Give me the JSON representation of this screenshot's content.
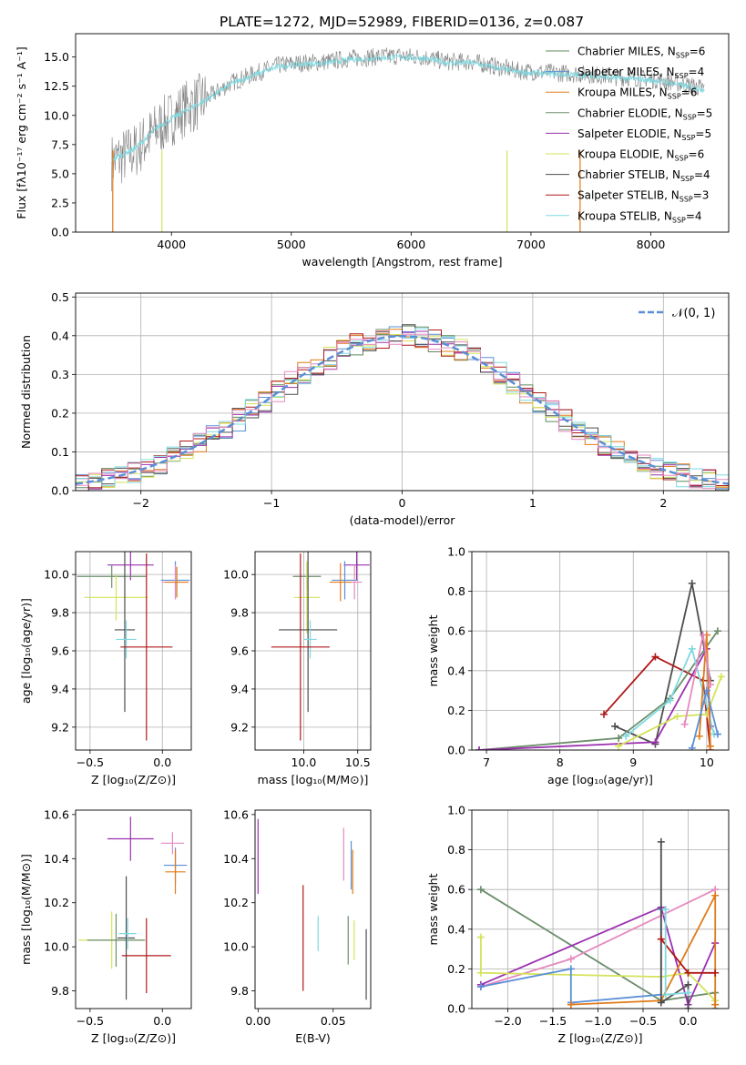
{
  "title": "PLATE=1272, MJD=52989, FIBERID=0136, z=0.087",
  "colors": {
    "chabrier_miles": "#5f8a5f",
    "salpeter_miles": "#1f6fd1",
    "kroupa_miles": "#e07b1a",
    "chabrier_elodie": "#6b8e6b",
    "salpeter_elodie": "#9b30b0",
    "kroupa_elodie": "#d4e35a",
    "chabrier_stelib": "#4d4d4d",
    "salpeter_stelib": "#b01818",
    "kroupa_stelib": "#7fd9e0",
    "pink": "#e58abf",
    "blue2": "#5a8fd6"
  },
  "legend": [
    {
      "label": "Chabrier MILES, N",
      "sub": "SSP",
      "tail": "=6",
      "color": "#5f8a5f"
    },
    {
      "label": "Salpeter MILES, N",
      "sub": "SSP",
      "tail": "=4",
      "color": "#5a8fd6"
    },
    {
      "label": "Kroupa MILES, N",
      "sub": "SSP",
      "tail": "=6",
      "color": "#e07b1a"
    },
    {
      "label": "Chabrier ELODIE, N",
      "sub": "SSP",
      "tail": "=5",
      "color": "#6b8e6b"
    },
    {
      "label": "Salpeter ELODIE, N",
      "sub": "SSP",
      "tail": "=5",
      "color": "#9b30b0"
    },
    {
      "label": "Kroupa ELODIE, N",
      "sub": "SSP",
      "tail": "=6",
      "color": "#d4e35a"
    },
    {
      "label": "Chabrier STELIB, N",
      "sub": "SSP",
      "tail": "=4",
      "color": "#4d4d4d"
    },
    {
      "label": "Salpeter STELIB, N",
      "sub": "SSP",
      "tail": "=3",
      "color": "#b01818"
    },
    {
      "label": "Kroupa STELIB, N",
      "sub": "SSP",
      "tail": "=4",
      "color": "#7fd9e0"
    }
  ],
  "chart_data": [
    {
      "type": "line",
      "panel": "spectrum",
      "xlabel": "wavelength [Angstrom, rest frame]",
      "ylabel": "Flux [fλ10⁻¹⁷ erg cm⁻² s⁻¹ A⁻¹]",
      "xlim": [
        3200,
        8650
      ],
      "ylim": [
        0,
        17
      ],
      "xticks": [
        "4000",
        "5000",
        "6000",
        "7000",
        "8000"
      ],
      "yticks": [
        "0.0",
        "2.5",
        "5.0",
        "7.5",
        "10.0",
        "12.5",
        "15.0"
      ],
      "series": [
        {
          "name": "data",
          "color": "#808080",
          "x": [
            3500,
            3700,
            3900,
            4100,
            4300,
            4500,
            4700,
            4900,
            5100,
            5300,
            5500,
            5700,
            5900,
            6100,
            6300,
            6500,
            6700,
            6900,
            7100,
            7300,
            7500,
            7700,
            7900,
            8100,
            8300,
            8450
          ],
          "y": [
            6,
            7,
            9,
            10.5,
            11.5,
            12.8,
            13.6,
            14.3,
            14.5,
            14.6,
            14.9,
            15.0,
            15.1,
            15.0,
            14.6,
            14.6,
            14.2,
            13.8,
            13.7,
            13.6,
            13.5,
            13.3,
            13.2,
            13.0,
            12.6,
            12.3
          ]
        },
        {
          "name": "model",
          "color": "#7fd9e0",
          "x": [
            3500,
            3700,
            3900,
            4100,
            4300,
            4500,
            4700,
            4900,
            5100,
            5300,
            5500,
            5700,
            5900,
            6100,
            6300,
            6500,
            6700,
            6900,
            7100,
            7300,
            7500,
            7700,
            7900,
            8100,
            8300,
            8450
          ],
          "y": [
            6.2,
            7.2,
            9.1,
            10.3,
            11.4,
            12.7,
            13.5,
            14.2,
            14.4,
            14.5,
            14.8,
            14.9,
            15.0,
            14.9,
            14.5,
            14.5,
            14.1,
            13.7,
            13.6,
            13.5,
            13.4,
            13.2,
            13.1,
            12.9,
            12.5,
            12.2
          ]
        }
      ]
    },
    {
      "type": "line",
      "panel": "residuals",
      "xlabel": "(data-model)/error",
      "ylabel": "Normed distribution",
      "xlim": [
        -2.5,
        2.5
      ],
      "ylim": [
        0,
        0.51
      ],
      "xticks": [
        "−2",
        "−1",
        "0",
        "1",
        "2"
      ],
      "yticks": [
        "0.0",
        "0.1",
        "0.2",
        "0.3",
        "0.4",
        "0.5"
      ],
      "legend_label": "𝒩(0, 1)",
      "gaussian": {
        "mean": 0,
        "sigma": 1
      }
    },
    {
      "type": "scatter",
      "panel": "age_vs_Z",
      "xlabel": "Z [log₁₀(Z/Z⊙)]",
      "ylabel": "age  [log₁₀(age/yr)]",
      "xlim": [
        -0.6,
        0.2
      ],
      "ylim": [
        9.08,
        10.12
      ],
      "xticks": [
        "−0.5",
        "0.0"
      ],
      "yticks": [
        "9.2",
        "9.4",
        "9.6",
        "9.8",
        "10.0"
      ],
      "points": [
        {
          "x": -0.22,
          "y": 10.05,
          "xerr": 0.16,
          "yerr": 0.08,
          "c": "#9b30b0"
        },
        {
          "x": 0.09,
          "y": 9.97,
          "xerr": 0.1,
          "yerr": 0.1,
          "c": "#5a8fd6"
        },
        {
          "x": 0.09,
          "y": 9.96,
          "xerr": 0.09,
          "yerr": 0.09,
          "c": "#e58abf"
        },
        {
          "x": 0.1,
          "y": 9.96,
          "xerr": 0.08,
          "yerr": 0.08,
          "c": "#e07b1a"
        },
        {
          "x": -0.35,
          "y": 9.99,
          "xerr": 0.24,
          "yerr": 0.06,
          "c": "#6b8e6b"
        },
        {
          "x": -0.32,
          "y": 9.88,
          "xerr": 0.22,
          "yerr": 0.12,
          "c": "#d4e35a"
        },
        {
          "x": -0.26,
          "y": 9.71,
          "xerr": 0.07,
          "yerr": 0.43,
          "c": "#4d4d4d"
        },
        {
          "x": -0.25,
          "y": 9.66,
          "xerr": 0.07,
          "yerr": 0.1,
          "c": "#7fd9e0"
        },
        {
          "x": -0.11,
          "y": 9.62,
          "xerr": 0.18,
          "yerr": 0.49,
          "c": "#b01818"
        }
      ]
    },
    {
      "type": "scatter",
      "panel": "age_vs_mass",
      "xlabel": "mass [log₁₀(M/M⊙)]",
      "ylabel": "",
      "xlim": [
        9.55,
        10.62
      ],
      "ylim": [
        9.08,
        10.12
      ],
      "xticks": [
        "10.0",
        "10.5"
      ],
      "yticks": [
        "9.2",
        "9.4",
        "9.6",
        "9.8",
        "10.0"
      ],
      "points": [
        {
          "x": 10.49,
          "y": 10.05,
          "xerr": 0.12,
          "yerr": 0.08,
          "c": "#9b30b0"
        },
        {
          "x": 10.38,
          "y": 9.97,
          "xerr": 0.12,
          "yerr": 0.1,
          "c": "#5a8fd6"
        },
        {
          "x": 10.47,
          "y": 9.96,
          "xerr": 0.07,
          "yerr": 0.09,
          "c": "#e58abf"
        },
        {
          "x": 10.34,
          "y": 9.96,
          "xerr": 0.1,
          "yerr": 0.1,
          "c": "#e07b1a"
        },
        {
          "x": 10.03,
          "y": 9.99,
          "xerr": 0.13,
          "yerr": 0.07,
          "c": "#6b8e6b"
        },
        {
          "x": 10.03,
          "y": 9.88,
          "xerr": 0.12,
          "yerr": 0.19,
          "c": "#d4e35a"
        },
        {
          "x": 10.04,
          "y": 9.71,
          "xerr": 0.27,
          "yerr": 0.43,
          "c": "#4d4d4d"
        },
        {
          "x": 10.06,
          "y": 9.66,
          "xerr": 0.06,
          "yerr": 0.1,
          "c": "#7fd9e0"
        },
        {
          "x": 9.97,
          "y": 9.62,
          "xerr": 0.27,
          "yerr": 0.49,
          "c": "#b01818"
        }
      ]
    },
    {
      "type": "line",
      "panel": "weight_vs_age",
      "xlabel": "age  [log₁₀(age/yr)]",
      "ylabel": "mass weight",
      "xlim": [
        6.8,
        10.3
      ],
      "ylim": [
        0,
        1
      ],
      "xticks": [
        "7",
        "8",
        "9",
        "10"
      ],
      "yticks": [
        "0.0",
        "0.2",
        "0.4",
        "0.6",
        "0.8",
        "1.0"
      ],
      "series": [
        {
          "c": "#4d4d4d",
          "x": [
            8.75,
            9.3,
            9.8,
            10.05
          ],
          "y": [
            0.12,
            0.03,
            0.84,
            0.35
          ]
        },
        {
          "c": "#b01818",
          "x": [
            8.6,
            9.3,
            9.95,
            10.05
          ],
          "y": [
            0.18,
            0.47,
            0.35,
            0.0
          ]
        },
        {
          "c": "#6b8e6b",
          "x": [
            6.9,
            8.8,
            9.5,
            10.15
          ],
          "y": [
            0.0,
            0.06,
            0.26,
            0.6
          ]
        },
        {
          "c": "#9b30b0",
          "x": [
            6.9,
            9.3,
            10.0,
            10.05
          ],
          "y": [
            0.0,
            0.04,
            0.51,
            0.12
          ]
        },
        {
          "c": "#7fd9e0",
          "x": [
            8.9,
            9.5,
            9.8,
            10.1
          ],
          "y": [
            0.07,
            0.25,
            0.51,
            0.08
          ]
        },
        {
          "c": "#d4e35a",
          "x": [
            8.8,
            9.6,
            10.0,
            10.2
          ],
          "y": [
            0.02,
            0.17,
            0.18,
            0.37
          ]
        },
        {
          "c": "#e07b1a",
          "x": [
            9.9,
            10.0,
            10.05
          ],
          "y": [
            0.07,
            0.58,
            0.02
          ]
        },
        {
          "c": "#e58abf",
          "x": [
            9.7,
            9.95,
            10.05
          ],
          "y": [
            0.13,
            0.58,
            0.33
          ]
        },
        {
          "c": "#5a8fd6",
          "x": [
            9.8,
            10.0,
            10.15
          ],
          "y": [
            0.01,
            0.3,
            0.08
          ]
        }
      ]
    },
    {
      "type": "scatter",
      "panel": "mass_vs_Z",
      "xlabel": "Z [log₁₀(Z/Z⊙)]",
      "ylabel": "mass [log₁₀(M/M⊙)]",
      "xlim": [
        -0.6,
        0.2
      ],
      "ylim": [
        9.72,
        10.62
      ],
      "xticks": [
        "−0.5",
        "0.0"
      ],
      "yticks": [
        "9.8",
        "10.0",
        "10.2",
        "10.4",
        "10.6"
      ],
      "points": [
        {
          "x": -0.22,
          "y": 10.49,
          "xerr": 0.16,
          "yerr": 0.1,
          "c": "#9b30b0"
        },
        {
          "x": 0.07,
          "y": 10.47,
          "xerr": 0.08,
          "yerr": 0.05,
          "c": "#e58abf"
        },
        {
          "x": 0.09,
          "y": 10.37,
          "xerr": 0.08,
          "yerr": 0.08,
          "c": "#5a8fd6"
        },
        {
          "x": 0.09,
          "y": 10.34,
          "xerr": 0.07,
          "yerr": 0.1,
          "c": "#e07b1a"
        },
        {
          "x": -0.35,
          "y": 10.03,
          "xerr": 0.23,
          "yerr": 0.13,
          "c": "#d4e35a"
        },
        {
          "x": -0.32,
          "y": 10.03,
          "xerr": 0.2,
          "yerr": 0.12,
          "c": "#6b8e6b"
        },
        {
          "x": -0.25,
          "y": 10.04,
          "xerr": 0.06,
          "yerr": 0.28,
          "c": "#4d4d4d"
        },
        {
          "x": -0.24,
          "y": 10.06,
          "xerr": 0.06,
          "yerr": 0.07,
          "c": "#7fd9e0"
        },
        {
          "x": -0.11,
          "y": 9.96,
          "xerr": 0.17,
          "yerr": 0.17,
          "c": "#b01818"
        }
      ]
    },
    {
      "type": "scatter",
      "panel": "mass_vs_ebv",
      "xlabel": "E(B-V)",
      "ylabel": "",
      "xlim": [
        -0.002,
        0.075
      ],
      "ylim": [
        9.72,
        10.62
      ],
      "xticks": [
        "0.00",
        "0.05"
      ],
      "yticks": [
        "9.8",
        "10.0",
        "10.2",
        "10.4",
        "10.6"
      ],
      "points": [
        {
          "x": 0.0,
          "y": 10.41,
          "yerr": 0.17,
          "c": "#9b30b0"
        },
        {
          "x": 0.03,
          "y": 10.04,
          "yerr": 0.24,
          "c": "#b01818"
        },
        {
          "x": 0.04,
          "y": 10.06,
          "yerr": 0.08,
          "c": "#7fd9e0"
        },
        {
          "x": 0.057,
          "y": 10.42,
          "yerr": 0.12,
          "c": "#e58abf"
        },
        {
          "x": 0.06,
          "y": 10.03,
          "yerr": 0.11,
          "c": "#6b8e6b"
        },
        {
          "x": 0.062,
          "y": 10.37,
          "yerr": 0.11,
          "c": "#5a8fd6"
        },
        {
          "x": 0.063,
          "y": 10.34,
          "yerr": 0.1,
          "c": "#e07b1a"
        },
        {
          "x": 0.064,
          "y": 10.03,
          "yerr": 0.09,
          "c": "#d4e35a"
        },
        {
          "x": 0.072,
          "y": 9.92,
          "yerr": 0.16,
          "c": "#4d4d4d"
        }
      ]
    },
    {
      "type": "line",
      "panel": "weight_vs_Z",
      "xlabel": "Z [log₁₀(Z/Z⊙)]",
      "ylabel": "mass weight",
      "xlim": [
        -2.4,
        0.45
      ],
      "ylim": [
        0,
        1
      ],
      "xticks": [
        "−2.0",
        "−1.5",
        "−1.0",
        "−0.5",
        "0.0"
      ],
      "yticks": [
        "0.0",
        "0.2",
        "0.4",
        "0.6",
        "0.8",
        "1.0"
      ],
      "series": [
        {
          "c": "#6b8e6b",
          "x": [
            -2.3,
            -0.3,
            0.3,
            0.3
          ],
          "y": [
            0.6,
            0.04,
            0.08,
            0.0
          ]
        },
        {
          "c": "#9b30b0",
          "x": [
            -2.3,
            -0.3,
            0.0,
            0.3
          ],
          "y": [
            0.12,
            0.51,
            0.02,
            0.33
          ]
        },
        {
          "c": "#e58abf",
          "x": [
            -2.3,
            -1.3,
            0.3
          ],
          "y": [
            0.11,
            0.25,
            0.6
          ]
        },
        {
          "c": "#d4e35a",
          "x": [
            -2.3,
            -2.3,
            -0.3,
            0.0,
            0.3
          ],
          "y": [
            0.36,
            0.18,
            0.16,
            0.18,
            0.04
          ]
        },
        {
          "c": "#5a8fd6",
          "x": [
            -2.3,
            -1.3,
            -1.3,
            -0.3,
            -0.3
          ],
          "y": [
            0.11,
            0.2,
            0.03,
            0.07,
            0.5
          ]
        },
        {
          "c": "#e07b1a",
          "x": [
            -1.3,
            -0.3,
            0.3,
            0.3
          ],
          "y": [
            0.02,
            0.04,
            0.57,
            0.02
          ]
        },
        {
          "c": "#4d4d4d",
          "x": [
            -0.3,
            -0.3,
            0.0,
            0.0
          ],
          "y": [
            0.84,
            0.03,
            0.12,
            0.0
          ]
        },
        {
          "c": "#b01818",
          "x": [
            -0.3,
            0.0,
            0.3
          ],
          "y": [
            0.35,
            0.18,
            0.18
          ]
        },
        {
          "c": "#7fd9e0",
          "x": [
            -0.25,
            -0.25,
            0.0
          ],
          "y": [
            0.5,
            0.07,
            0.08
          ]
        }
      ]
    }
  ]
}
